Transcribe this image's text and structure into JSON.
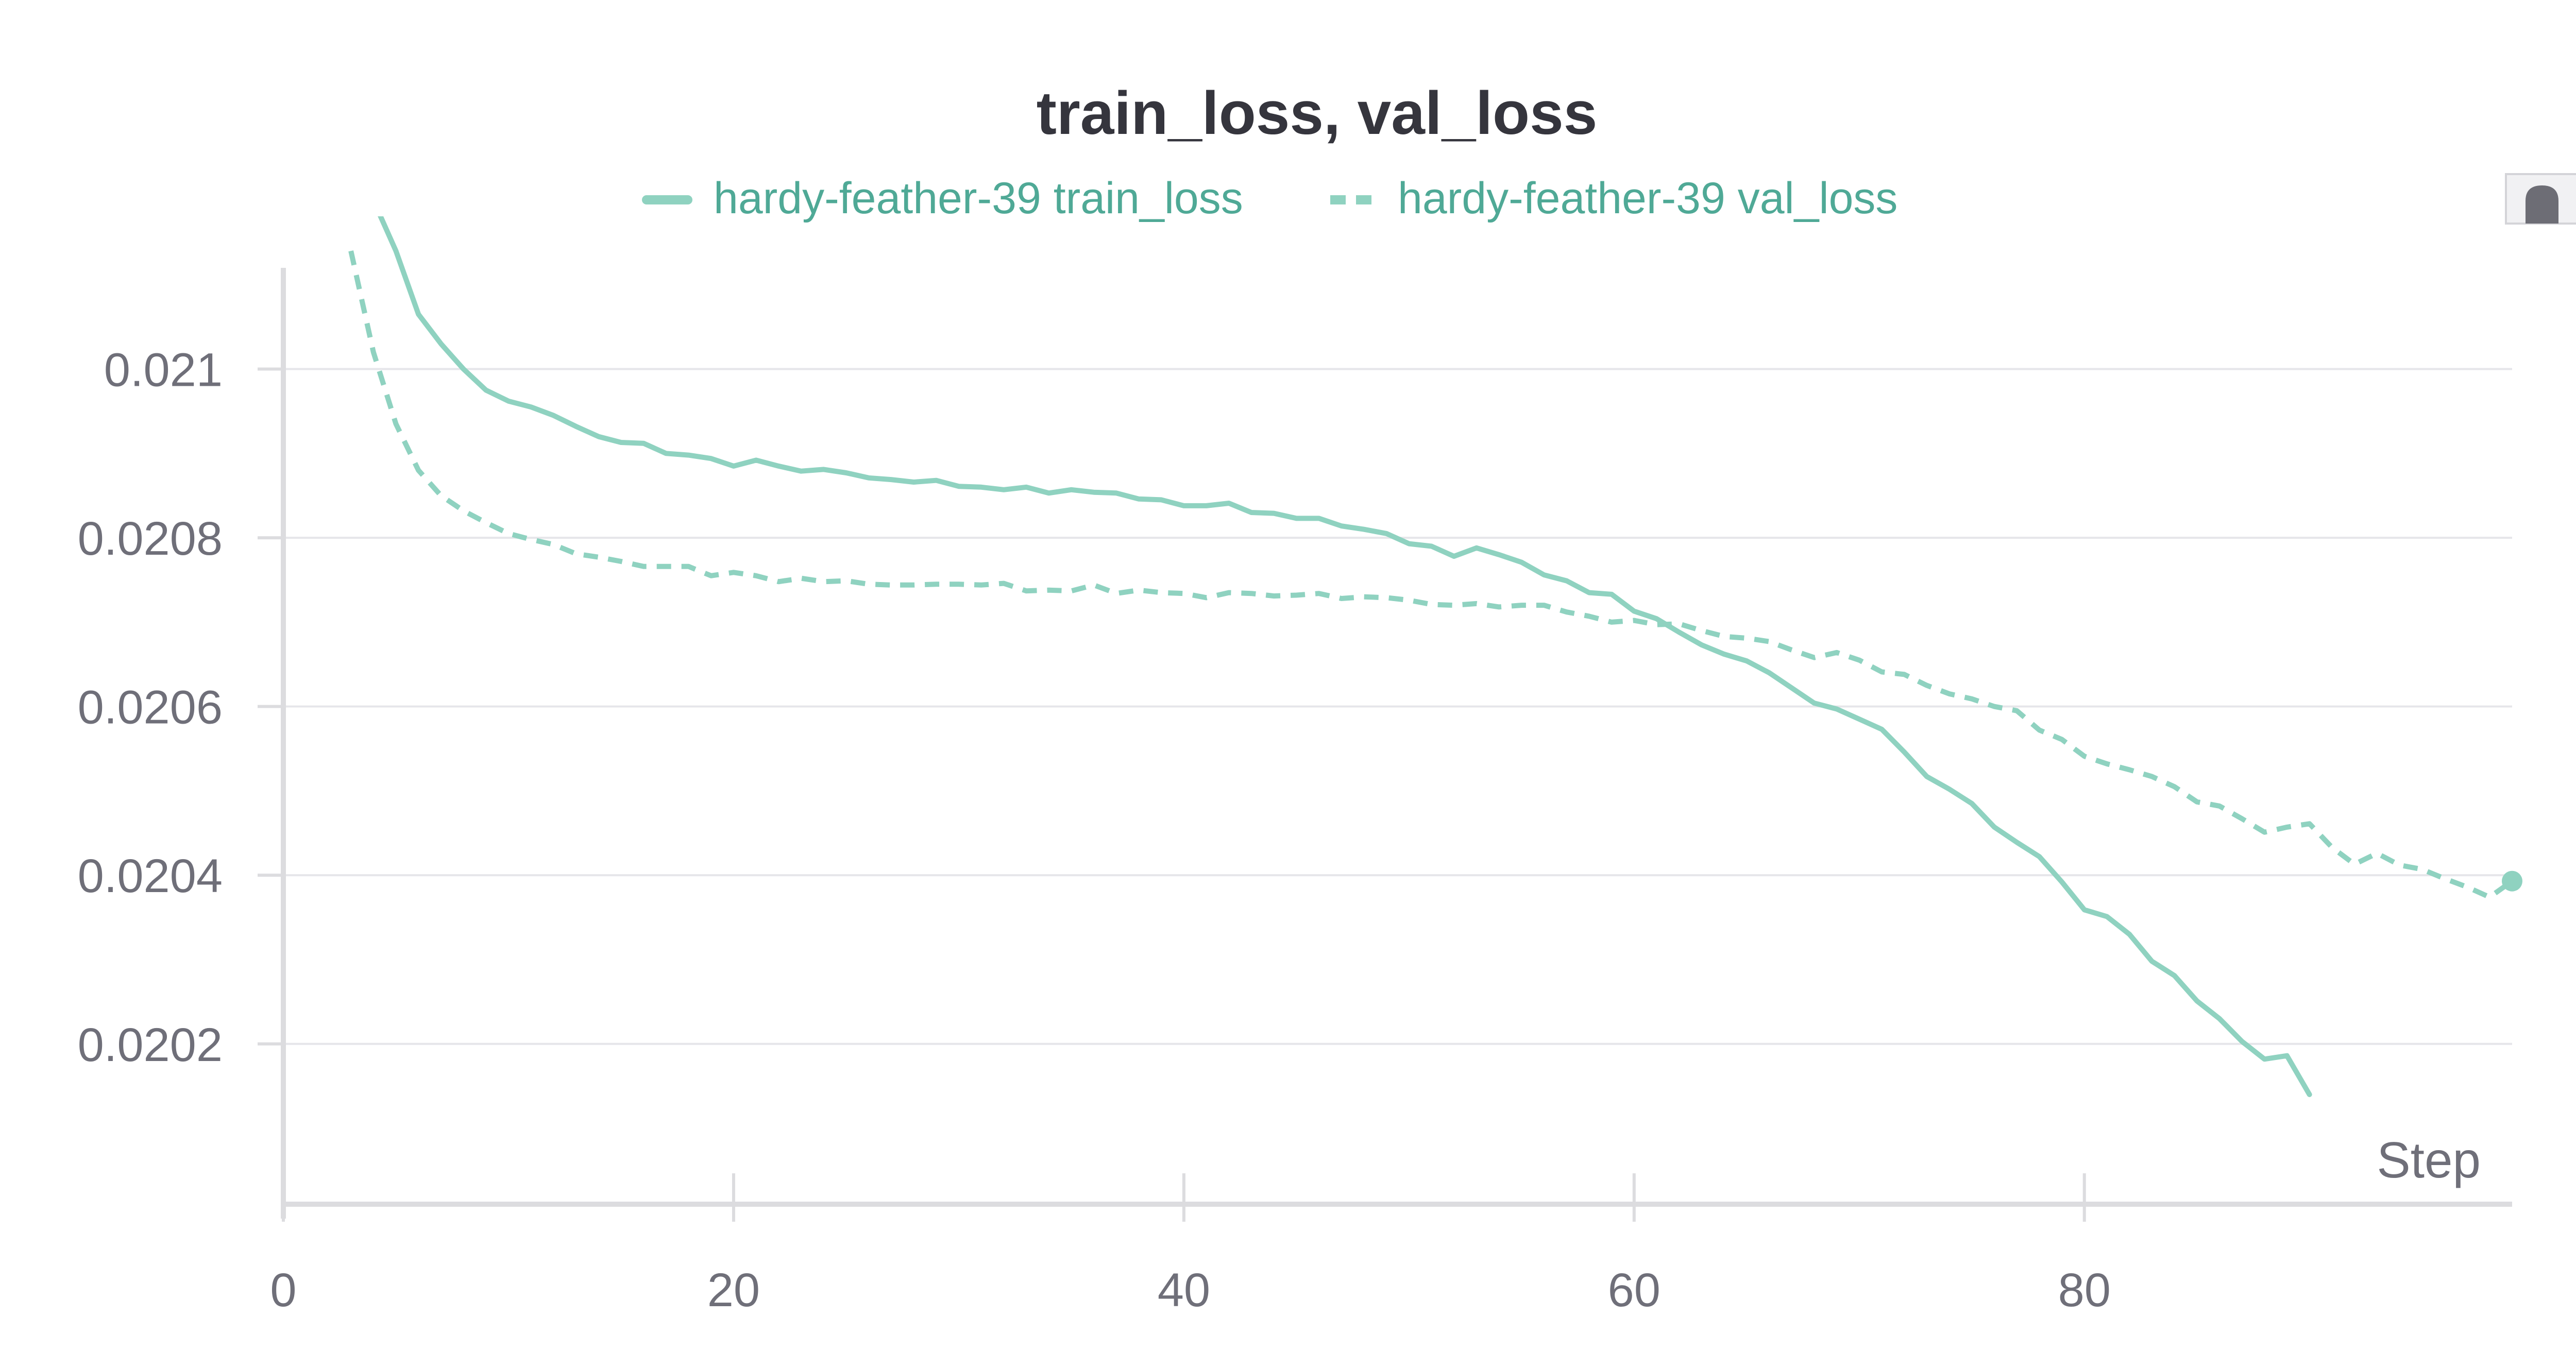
{
  "chart_data": {
    "type": "line",
    "title": "train_loss, val_loss",
    "xlabel": "Step",
    "ylabel": "",
    "xlim": [
      0,
      99
    ],
    "ylim": [
      0.02001,
      0.02112
    ],
    "x_ticks": [
      "0",
      "20",
      "40",
      "60",
      "80"
    ],
    "y_ticks": [
      "0.021",
      "0.0208",
      "0.0206",
      "0.0204",
      "0.0202"
    ],
    "grid": true,
    "legend_position": "top",
    "colors": {
      "series": "#8fd2c0",
      "legend_text": "#4fa996",
      "grid": "#e6e6ea",
      "axis": "#dcdcdf",
      "tick_text": "#6f6f79",
      "title": "#35353d"
    },
    "series": [
      {
        "name": "hardy-feather-39 train_loss",
        "style": "solid",
        "x": [
          3,
          4,
          5,
          6,
          7,
          8,
          9,
          10,
          11,
          12,
          13,
          14,
          15,
          16,
          17,
          18,
          19,
          20,
          21,
          22,
          23,
          24,
          25,
          26,
          27,
          28,
          29,
          30,
          31,
          32,
          33,
          34,
          35,
          36,
          37,
          38,
          39,
          40,
          41,
          42,
          43,
          44,
          45,
          46,
          47,
          48,
          49,
          50,
          51,
          52,
          53,
          54,
          55,
          56,
          57,
          58,
          59,
          60,
          61,
          62,
          63,
          64,
          65,
          66,
          67,
          68,
          69,
          70,
          71,
          72,
          73,
          74,
          75,
          76,
          77,
          78,
          79,
          80,
          81,
          82,
          83,
          84,
          85,
          86,
          87,
          88,
          89,
          90
        ],
        "y": [
          0.02128,
          0.0212,
          0.02114,
          0.021065,
          0.02103,
          0.021,
          0.020975,
          0.020962,
          0.020955,
          0.020945,
          0.020932,
          0.02092,
          0.020913,
          0.020912,
          0.0209,
          0.020898,
          0.020894,
          0.020885,
          0.020892,
          0.020885,
          0.020879,
          0.020881,
          0.020877,
          0.020871,
          0.020869,
          0.020866,
          0.020868,
          0.020861,
          0.02086,
          0.020857,
          0.02086,
          0.020853,
          0.020857,
          0.020854,
          0.020853,
          0.020846,
          0.020845,
          0.020838,
          0.020838,
          0.020841,
          0.02083,
          0.020829,
          0.020823,
          0.020823,
          0.020814,
          0.02081,
          0.020805,
          0.020793,
          0.02079,
          0.020778,
          0.020788,
          0.02078,
          0.020771,
          0.020756,
          0.020749,
          0.020735,
          0.020733,
          0.020713,
          0.020704,
          0.020688,
          0.020673,
          0.020662,
          0.020654,
          0.02064,
          0.020622,
          0.020604,
          0.020597,
          0.020585,
          0.020573,
          0.020546,
          0.020517,
          0.020502,
          0.020485,
          0.020457,
          0.020439,
          0.020422,
          0.020392,
          0.020359,
          0.020351,
          0.02033,
          0.020298,
          0.020281,
          0.020251,
          0.02023,
          0.020203,
          0.020182,
          0.020186,
          0.02014
        ]
      },
      {
        "name": "hardy-feather-39 val_loss",
        "style": "dashed",
        "x": [
          3,
          4,
          5,
          6,
          7,
          8,
          9,
          10,
          11,
          12,
          13,
          14,
          15,
          16,
          17,
          18,
          19,
          20,
          21,
          22,
          23,
          24,
          25,
          26,
          27,
          28,
          29,
          30,
          31,
          32,
          33,
          34,
          35,
          36,
          37,
          38,
          39,
          40,
          41,
          42,
          43,
          44,
          45,
          46,
          47,
          48,
          49,
          50,
          51,
          52,
          53,
          54,
          55,
          56,
          57,
          58,
          59,
          60,
          61,
          62,
          63,
          64,
          65,
          66,
          67,
          68,
          69,
          70,
          71,
          72,
          73,
          74,
          75,
          76,
          77,
          78,
          79,
          80,
          81,
          82,
          83,
          84,
          85,
          86,
          87,
          88,
          89,
          90,
          91,
          92,
          93,
          94,
          95,
          96,
          97,
          98,
          99
        ],
        "y": [
          0.02114,
          0.02102,
          0.020935,
          0.02088,
          0.02085,
          0.020832,
          0.020818,
          0.020805,
          0.020798,
          0.020792,
          0.020781,
          0.020777,
          0.020772,
          0.020766,
          0.020766,
          0.020766,
          0.020755,
          0.020759,
          0.020755,
          0.020748,
          0.020752,
          0.020748,
          0.020749,
          0.020745,
          0.020744,
          0.020744,
          0.020745,
          0.020745,
          0.020744,
          0.020746,
          0.020737,
          0.020738,
          0.020737,
          0.020744,
          0.020734,
          0.020738,
          0.020735,
          0.020734,
          0.020729,
          0.020735,
          0.020734,
          0.020731,
          0.020732,
          0.020734,
          0.020728,
          0.02073,
          0.020729,
          0.020726,
          0.020721,
          0.02072,
          0.020722,
          0.020718,
          0.02072,
          0.02072,
          0.020712,
          0.020707,
          0.0207,
          0.020702,
          0.020697,
          0.020698,
          0.02069,
          0.020683,
          0.020681,
          0.020677,
          0.020667,
          0.020658,
          0.020664,
          0.020655,
          0.020641,
          0.020638,
          0.020625,
          0.020615,
          0.020609,
          0.0206,
          0.020595,
          0.020572,
          0.020561,
          0.020541,
          0.020532,
          0.020525,
          0.020517,
          0.020505,
          0.020487,
          0.020482,
          0.020467,
          0.020451,
          0.020457,
          0.020461,
          0.020433,
          0.020413,
          0.020426,
          0.020412,
          0.020407,
          0.020396,
          0.020386,
          0.020374,
          0.020393
        ]
      }
    ],
    "controls": {
      "corner_icon": "scroll-handle-icon"
    }
  }
}
